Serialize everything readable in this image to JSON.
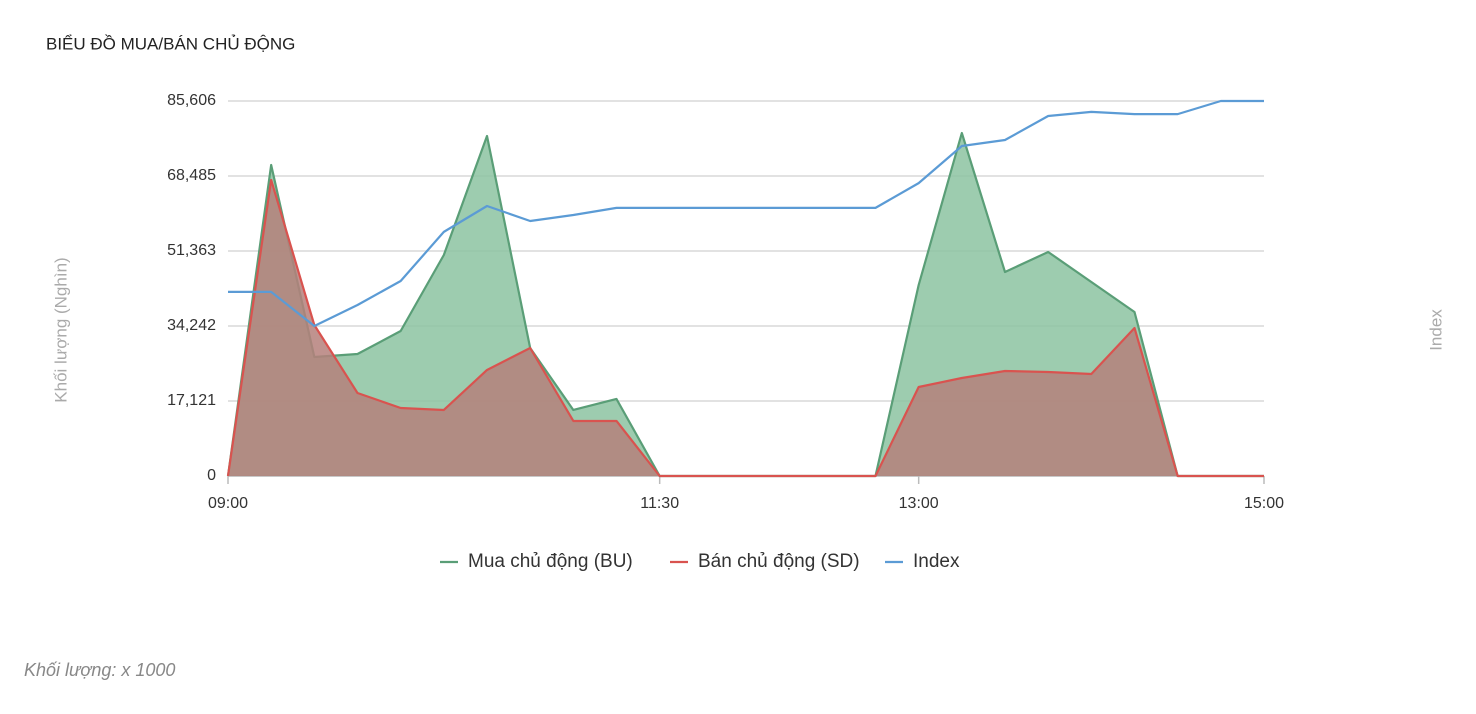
{
  "chart_data": {
    "type": "area",
    "title": "BIỂU ĐỒ MUA/BÁN CHỦ ĐỘNG",
    "y_label": "Khối lượng (Nghìn)",
    "y2_label": "Index",
    "footnote": "Khối lượng: x 1000",
    "x": [
      "09:00",
      "09:15",
      "09:30",
      "09:45",
      "10:00",
      "10:15",
      "10:30",
      "10:45",
      "11:00",
      "11:15",
      "11:30",
      "11:45",
      "12:00",
      "12:15",
      "12:30",
      "12:45",
      "13:00",
      "13:15",
      "13:30",
      "13:45",
      "14:00",
      "14:15",
      "14:30",
      "14:45",
      "15:00"
    ],
    "xlim": [
      "09:00",
      "15:00"
    ],
    "xticks": [
      "09:00",
      "11:30",
      "13:00",
      "15:00"
    ],
    "ylim": [
      0,
      85606
    ],
    "yticks": [
      0,
      {
        "value": 17121,
        "label": "17,121"
      },
      {
        "value": 34242,
        "label": "34,242"
      },
      {
        "value": 51363,
        "label": "51,363"
      },
      {
        "value": 68485,
        "label": "68,485"
      },
      {
        "value": 85606,
        "label": "85,606"
      }
    ],
    "y2lim": [
      0,
      100
    ],
    "grid": true,
    "legend": "bottom",
    "series": [
      {
        "name": "Mua chủ động (BU)",
        "color": "#5a9e77",
        "fill": "#8cc3a1",
        "values": [
          0,
          71000,
          27170,
          27850,
          33100,
          50450,
          77620,
          29220,
          15070,
          17580,
          0,
          0,
          0,
          0,
          0,
          0,
          43600,
          78300,
          46570,
          51140,
          44290,
          37440,
          0,
          0,
          0
        ]
      },
      {
        "name": "Bán chủ động (SD)",
        "color": "#d9534f",
        "fill": "#b5807b",
        "values": [
          0,
          67580,
          34470,
          18950,
          15520,
          15070,
          24200,
          29220,
          12560,
          12560,
          0,
          0,
          0,
          0,
          0,
          0,
          20320,
          22370,
          23970,
          23740,
          23290,
          33790,
          0,
          0,
          0
        ]
      },
      {
        "name": "Index",
        "color": "#5b9bd5",
        "axis": "y2",
        "values": [
          49.1,
          49.1,
          40.0,
          45.6,
          52.0,
          65.1,
          72.0,
          68.0,
          69.6,
          71.5,
          71.5,
          71.5,
          71.5,
          71.5,
          71.5,
          71.5,
          78.1,
          88.0,
          89.6,
          96.0,
          97.1,
          96.5,
          96.5,
          100,
          100
        ]
      }
    ]
  }
}
